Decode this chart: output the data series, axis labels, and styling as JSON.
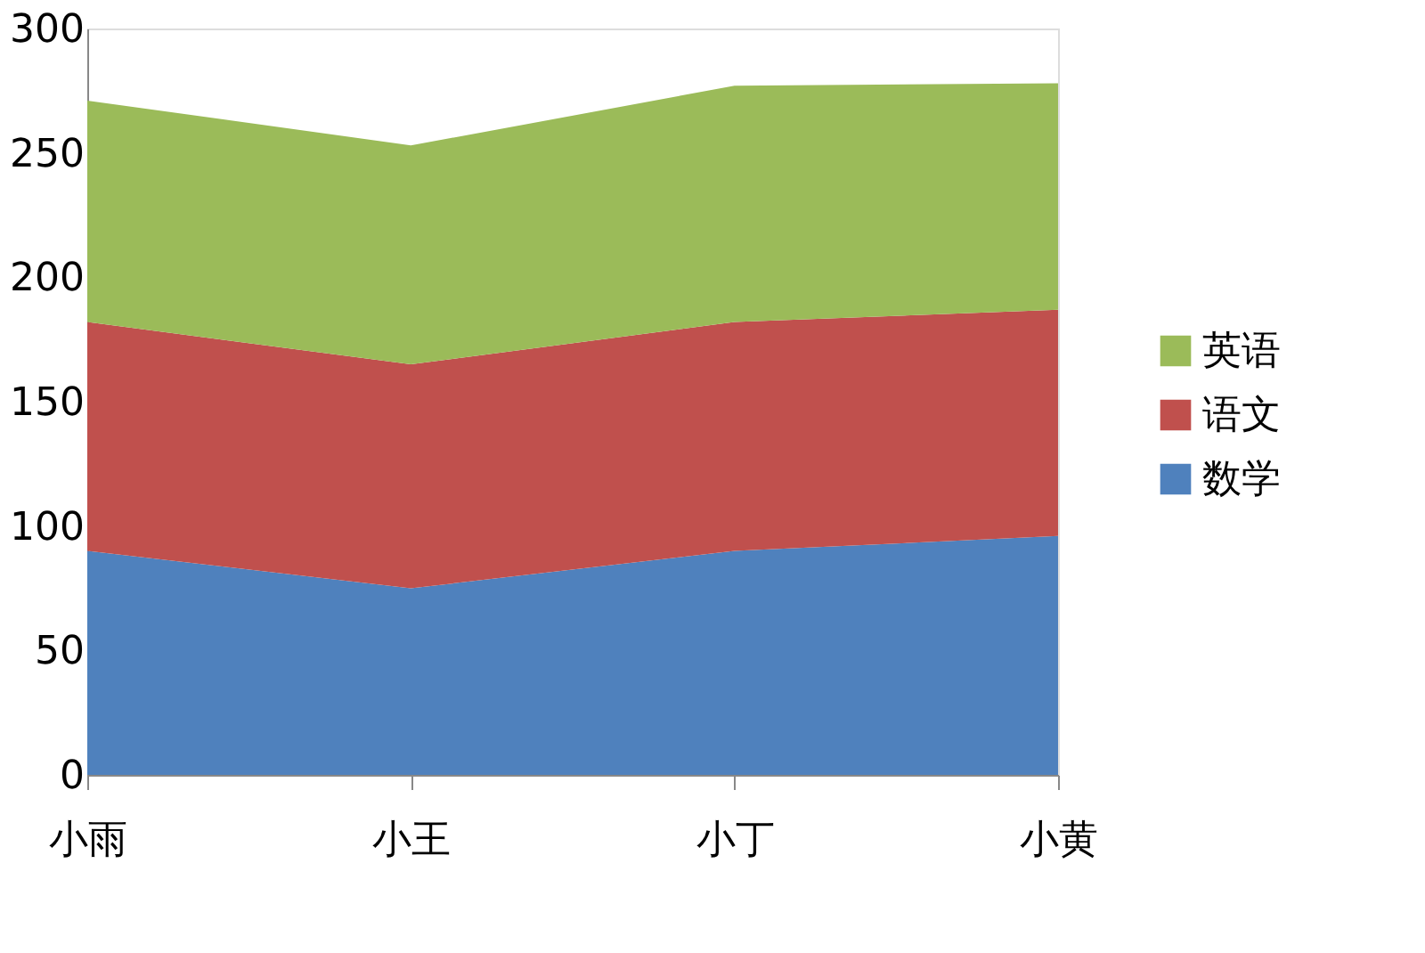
{
  "chart_data": {
    "type": "area",
    "stacked": true,
    "categories": [
      "小雨",
      "小王",
      "小丁",
      "小黄"
    ],
    "series": [
      {
        "name": "数学",
        "color": "#4f81bd",
        "values": [
          90,
          75,
          90,
          96
        ]
      },
      {
        "name": "语文",
        "color": "#c0504d",
        "values": [
          92,
          90,
          92,
          91
        ]
      },
      {
        "name": "英语",
        "color": "#9bbb59",
        "values": [
          89,
          88,
          95,
          91
        ]
      }
    ],
    "ylim": [
      0,
      300
    ],
    "yticks": [
      0,
      50,
      100,
      150,
      200,
      250,
      300
    ],
    "grid": false,
    "legend": "right"
  }
}
